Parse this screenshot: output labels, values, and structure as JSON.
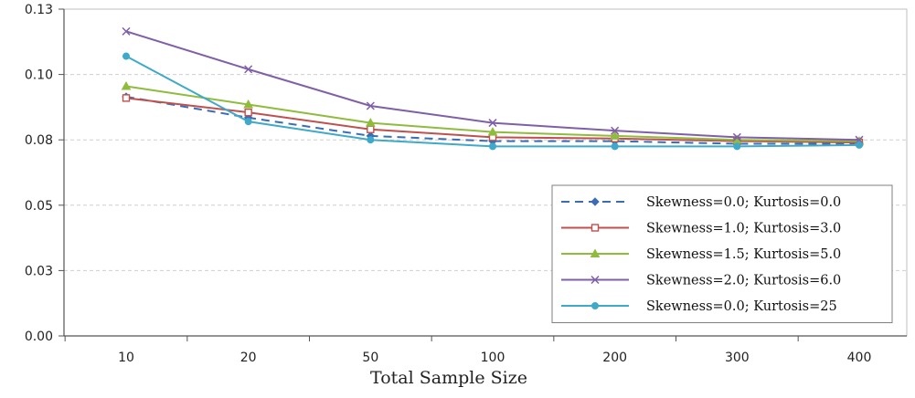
{
  "chart_data": {
    "type": "line",
    "title": "",
    "xlabel": "Total Sample Size",
    "ylabel": "",
    "categories": [
      "10",
      "20",
      "50",
      "100",
      "200",
      "300",
      "400"
    ],
    "y_ticks": [
      "0.00",
      "0.03",
      "0.05",
      "0.08",
      "0.10",
      "0.13"
    ],
    "ylim": [
      0,
      0.125
    ],
    "grid": "horizontal dashed",
    "legend_position": "bottom-right",
    "series": [
      {
        "name": "Skewness=0.0;  Kurtosis=0.0",
        "color": "#3a6db5",
        "dash": "dashed",
        "marker": "diamond",
        "values": [
          0.0915,
          0.0835,
          0.0765,
          0.0745,
          0.0745,
          0.0735,
          0.0735
        ]
      },
      {
        "name": "Skewness=1.0;  Kurtosis=3.0",
        "color": "#c0504d",
        "dash": "solid",
        "marker": "square",
        "values": [
          0.091,
          0.0855,
          0.079,
          0.076,
          0.0755,
          0.0745,
          0.074
        ]
      },
      {
        "name": "Skewness=1.5;  Kurtosis=5.0",
        "color": "#8fbc3c",
        "dash": "solid",
        "marker": "triangle",
        "values": [
          0.0955,
          0.0885,
          0.0815,
          0.078,
          0.0765,
          0.075,
          0.0745
        ]
      },
      {
        "name": "Skewness=2.0;  Kurtosis=6.0",
        "color": "#7f5fa8",
        "dash": "solid",
        "marker": "x",
        "values": [
          0.1165,
          0.102,
          0.088,
          0.0815,
          0.0785,
          0.076,
          0.075
        ]
      },
      {
        "name": "Skewness=0.0;  Kurtosis=25",
        "color": "#3fa9c9",
        "dash": "solid",
        "marker": "circle",
        "values": [
          0.107,
          0.082,
          0.075,
          0.0725,
          0.0725,
          0.0725,
          0.073
        ]
      }
    ]
  }
}
